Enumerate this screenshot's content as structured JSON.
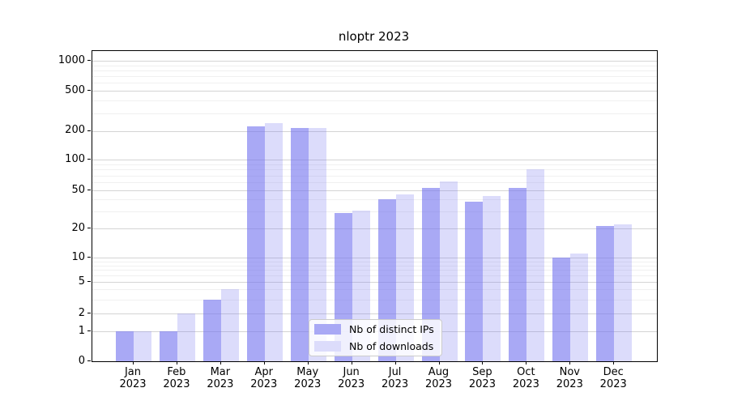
{
  "title": "nloptr 2023",
  "chart_data": {
    "type": "bar",
    "title": "nloptr 2023",
    "categories": [
      "Jan",
      "Feb",
      "Mar",
      "Apr",
      "May",
      "Jun",
      "Jul",
      "Aug",
      "Sep",
      "Oct",
      "Nov",
      "Dec"
    ],
    "xtick_year": "2023",
    "yticks": [
      0,
      1,
      2,
      5,
      10,
      20,
      50,
      100,
      200,
      500,
      1000
    ],
    "yscale": "log-like (log above 1, linear 0-1, compressed 1-10)",
    "ylim": [
      0,
      1000
    ],
    "grid": true,
    "legend_position": "lower center-right inside plot",
    "series": [
      {
        "name": "Nb of distinct IPs",
        "color": "#7474ef",
        "alpha": 0.62,
        "values": [
          1,
          1,
          3,
          220,
          215,
          29,
          40,
          53,
          38,
          53,
          10,
          21
        ]
      },
      {
        "name": "Nb of downloads",
        "color": "#7474ef",
        "alpha": 0.25,
        "values": [
          1,
          2,
          4,
          240,
          213,
          31,
          45,
          61,
          44,
          80,
          11,
          22
        ]
      }
    ]
  },
  "colors": {
    "grid_major": "#d4d4d4",
    "grid_minor": "#f0f0f0",
    "axis": "#000000",
    "background": "#ffffff",
    "legend_border": "#cccccc"
  }
}
